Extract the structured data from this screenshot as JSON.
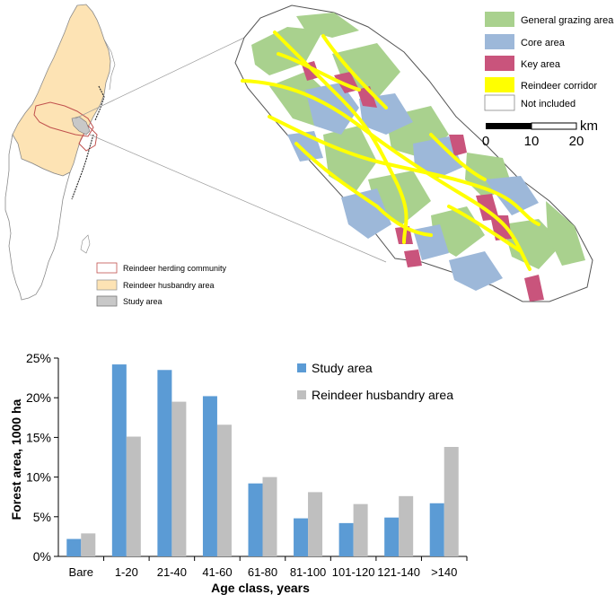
{
  "map": {
    "legend_right": [
      {
        "label": "General grazing area",
        "color": "#a9d18e"
      },
      {
        "label": "Core area",
        "color": "#9db8d9"
      },
      {
        "label": "Key area",
        "color": "#c9547c"
      },
      {
        "label": "Reindeer corridor",
        "color": "#ffff00"
      },
      {
        "label": "Not included",
        "color": "#ffffff"
      }
    ],
    "scale": {
      "unit": "km",
      "ticks": [
        "0",
        "10",
        "20"
      ]
    },
    "legend_left": [
      {
        "label": "Reindeer herding community",
        "color": "#ffffff",
        "stroke": "#c0504d"
      },
      {
        "label": "Reindeer husbandry area",
        "color": "#fde3b4",
        "stroke": "#999999"
      },
      {
        "label": "Study area",
        "color": "#c8c8c8",
        "stroke": "#777777"
      }
    ]
  },
  "chart_data": {
    "type": "bar",
    "title": "",
    "xlabel": "Age class, years",
    "ylabel": "Forest area, 1000 ha",
    "categories": [
      "Bare",
      "1-20",
      "21-40",
      "41-60",
      "61-80",
      "81-100",
      "101-120",
      "121-140",
      ">140"
    ],
    "series": [
      {
        "name": "Study area",
        "color": "#5b9bd5",
        "values": [
          2.2,
          24.2,
          23.5,
          20.2,
          9.2,
          4.8,
          4.2,
          4.9,
          6.7
        ]
      },
      {
        "name": "Reindeer husbandry area",
        "color": "#bfbfbf",
        "values": [
          2.9,
          15.1,
          19.5,
          16.6,
          10.0,
          8.1,
          6.6,
          7.6,
          13.8
        ]
      }
    ],
    "ylim": [
      0,
      25
    ],
    "yticks": [
      "0%",
      "5%",
      "10%",
      "15%",
      "20%",
      "25%"
    ],
    "legend_position": "top-right",
    "grid": false
  }
}
